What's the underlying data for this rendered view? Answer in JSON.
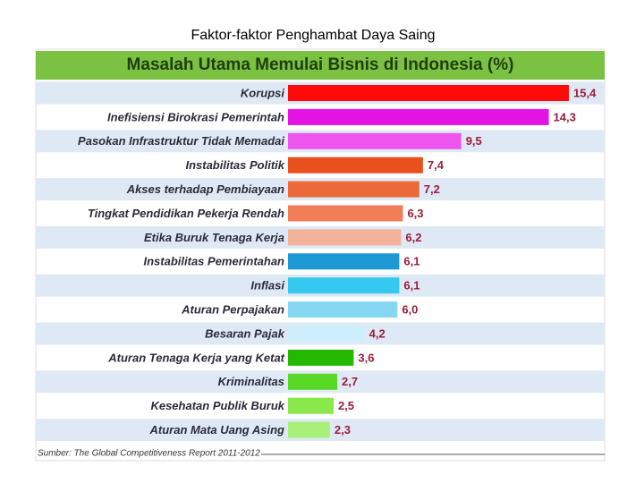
{
  "heading": "Faktor-faktor Penghambat Daya Saing",
  "chart_data": {
    "type": "bar",
    "title": "Masalah Utama Memulai Bisnis di Indonesia (%)",
    "source": "Sumber: The Global Competitiveness Report 2011-2012",
    "categories": [
      "Korupsi",
      "Inefisiensi Birokrasi Pemerintah",
      "Pasokan Infrastruktur Tidak Memadai",
      "Instabilitas Politik",
      "Akses terhadap Pembiayaan",
      "Tingkat Pendidikan Pekerja Rendah",
      "Etika Buruk Tenaga Kerja",
      "Instabilitas Pemerintahan",
      "Inflasi",
      "Aturan Perpajakan",
      "Besaran Pajak",
      "Aturan Tenaga Kerja yang Ketat",
      "Kriminalitas",
      "Kesehatan Publik Buruk",
      "Aturan Mata Uang Asing"
    ],
    "values": [
      15.4,
      14.3,
      9.5,
      7.4,
      7.2,
      6.3,
      6.2,
      6.1,
      6.1,
      6.0,
      4.2,
      3.6,
      2.7,
      2.5,
      2.3
    ],
    "value_labels": [
      "15,4",
      "14,3",
      "9,5",
      "7,4",
      "7,2",
      "6,3",
      "6,2",
      "6,1",
      "6,1",
      "6,0",
      "4,2",
      "3,6",
      "2,7",
      "2,5",
      "2,3"
    ],
    "colors": [
      "#ff0a0a",
      "#e413e4",
      "#ee55ee",
      "#e8501e",
      "#ec6a3a",
      "#ef7d55",
      "#f3b39a",
      "#1c98d4",
      "#35c8f0",
      "#86d8f2",
      "#cdeefb",
      "#25b800",
      "#5ad826",
      "#8ae84a",
      "#a8f07a"
    ]
  }
}
